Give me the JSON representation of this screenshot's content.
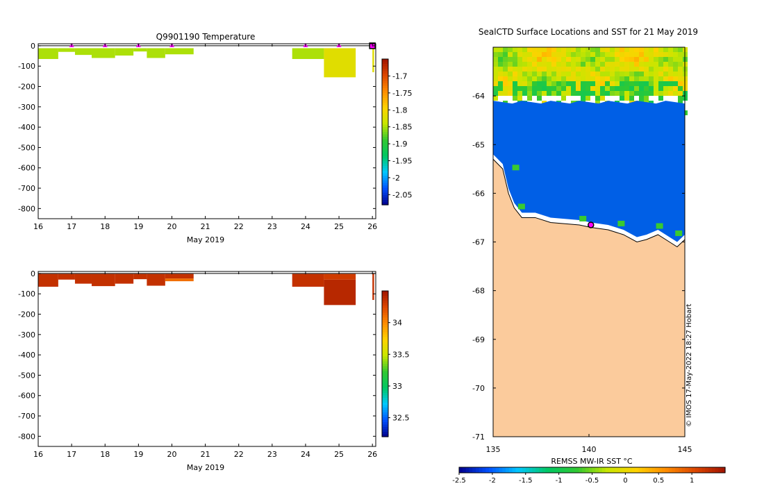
{
  "chart_data": [
    {
      "id": "temperature-profile",
      "type": "heatmap",
      "title": "Q9901190  Temperature",
      "xlabel": "May 2019",
      "ylabel": "",
      "xlim": [
        16,
        26.1
      ],
      "ylim": [
        -850,
        10
      ],
      "x_ticks": [
        "16",
        "17",
        "18",
        "19",
        "20",
        "21",
        "22",
        "23",
        "24",
        "25",
        "26"
      ],
      "y_ticks": [
        "0",
        "-100",
        "-200",
        "-300",
        "-400",
        "-500",
        "-600",
        "-700",
        "-800"
      ],
      "colorbar": {
        "range": [
          -2.08,
          -1.65
        ],
        "ticks": [
          "-1.7",
          "-1.75",
          "-1.8",
          "-1.85",
          "-1.9",
          "-1.95",
          "-2",
          "-2.05"
        ],
        "tick_values": [
          -1.7,
          -1.75,
          -1.8,
          -1.85,
          -1.9,
          -1.95,
          -2,
          -2.05
        ],
        "colors": [
          "#00008b",
          "#0050ff",
          "#00c8ff",
          "#00c864",
          "#32c832",
          "#c8e600",
          "#ffd200",
          "#ff8c00",
          "#dc4600",
          "#a01400"
        ]
      },
      "casts": [
        {
          "x0": 16.0,
          "x1": 16.6,
          "depth_min": -12,
          "depth_max": -65,
          "value": -1.85
        },
        {
          "x0": 16.6,
          "x1": 17.1,
          "depth_min": -12,
          "depth_max": -30,
          "value": -1.85
        },
        {
          "x0": 17.1,
          "x1": 17.6,
          "depth_min": -12,
          "depth_max": -45,
          "value": -1.85
        },
        {
          "x0": 17.6,
          "x1": 18.3,
          "depth_min": -12,
          "depth_max": -60,
          "value": -1.85
        },
        {
          "x0": 18.3,
          "x1": 18.85,
          "depth_min": -12,
          "depth_max": -48,
          "value": -1.85
        },
        {
          "x0": 18.85,
          "x1": 19.25,
          "depth_min": -12,
          "depth_max": -28,
          "value": -1.85
        },
        {
          "x0": 19.25,
          "x1": 19.8,
          "depth_min": -12,
          "depth_max": -60,
          "value": -1.85
        },
        {
          "x0": 19.8,
          "x1": 20.65,
          "depth_min": -12,
          "depth_max": -42,
          "value": -1.85
        },
        {
          "x0": 23.6,
          "x1": 24.55,
          "depth_min": -12,
          "depth_max": -65,
          "value": -1.85
        },
        {
          "x0": 24.55,
          "x1": 25.5,
          "depth_min": -12,
          "depth_max": -155,
          "value": -1.82
        },
        {
          "x0": 26.0,
          "x1": 26.05,
          "depth_min": -12,
          "depth_max": -130,
          "value": -1.82
        }
      ],
      "markers": [
        17,
        18,
        19,
        20,
        24,
        25
      ],
      "current_marker": 26
    },
    {
      "id": "salinity-profile",
      "type": "heatmap",
      "title": "",
      "xlabel": "May 2019",
      "ylabel": "",
      "xlim": [
        16,
        26.1
      ],
      "ylim": [
        -850,
        10
      ],
      "x_ticks": [
        "16",
        "17",
        "18",
        "19",
        "20",
        "21",
        "22",
        "23",
        "24",
        "25",
        "26"
      ],
      "y_ticks": [
        "0",
        "-100",
        "-200",
        "-300",
        "-400",
        "-500",
        "-600",
        "-700",
        "-800"
      ],
      "colorbar": {
        "range": [
          32.2,
          34.5
        ],
        "ticks": [
          "34",
          "33.5",
          "33",
          "32.5"
        ],
        "tick_values": [
          34,
          33.5,
          33,
          32.5
        ],
        "colors": [
          "#00008b",
          "#0050ff",
          "#00c8ff",
          "#00c864",
          "#32c832",
          "#c8e600",
          "#ffd200",
          "#ff8c00",
          "#dc4600",
          "#a01400"
        ]
      },
      "casts": [
        {
          "x0": 16.0,
          "x1": 16.6,
          "depth_min": -2,
          "depth_max": -65,
          "value": 34.35
        },
        {
          "x0": 16.6,
          "x1": 17.1,
          "depth_min": -2,
          "depth_max": -30,
          "value": 34.35
        },
        {
          "x0": 17.1,
          "x1": 17.6,
          "depth_min": -2,
          "depth_max": -50,
          "value": 34.35
        },
        {
          "x0": 17.6,
          "x1": 18.3,
          "depth_min": -2,
          "depth_max": -62,
          "value": 34.35
        },
        {
          "x0": 18.3,
          "x1": 18.85,
          "depth_min": -2,
          "depth_max": -50,
          "value": 34.35
        },
        {
          "x0": 18.85,
          "x1": 19.25,
          "depth_min": -2,
          "depth_max": -28,
          "value": 34.35
        },
        {
          "x0": 19.25,
          "x1": 19.8,
          "depth_min": -2,
          "depth_max": -60,
          "value": 34.35
        },
        {
          "x0": 19.8,
          "x1": 20.65,
          "depth_min": -2,
          "depth_max": -25,
          "value": 34.35
        },
        {
          "x0": 19.8,
          "x1": 20.65,
          "depth_min": -25,
          "depth_max": -38,
          "value": 34.1
        },
        {
          "x0": 23.6,
          "x1": 24.55,
          "depth_min": -2,
          "depth_max": -65,
          "value": 34.35
        },
        {
          "x0": 24.55,
          "x1": 25.5,
          "depth_min": -2,
          "depth_max": -30,
          "value": 34.3
        },
        {
          "x0": 24.55,
          "x1": 25.5,
          "depth_min": -30,
          "depth_max": -155,
          "value": 34.4
        },
        {
          "x0": 26.0,
          "x1": 26.05,
          "depth_min": -2,
          "depth_max": -130,
          "value": 34.35
        }
      ]
    },
    {
      "id": "sst-map",
      "type": "heatmap",
      "title": "SealCTD Surface Locations and SST for 21 May 2019",
      "xlabel": "",
      "ylabel": "",
      "xlim": [
        135,
        145
      ],
      "ylim": [
        -71,
        -63
      ],
      "x_ticks": [
        "135",
        "140",
        "145"
      ],
      "x_tick_values": [
        135,
        140,
        145
      ],
      "y_ticks": [
        "-64",
        "-65",
        "-66",
        "-67",
        "-68",
        "-69",
        "-70",
        "-71"
      ],
      "y_tick_values": [
        -64,
        -65,
        -66,
        -67,
        -68,
        -69,
        -70,
        -71
      ],
      "colorbar": {
        "label": "REMSS MW-IR SST °C",
        "range": [
          -2.5,
          1.5
        ],
        "ticks": [
          "-2.5",
          "-2",
          "-1.5",
          "-1",
          "-0.5",
          "0",
          "0.5",
          "1"
        ],
        "tick_values": [
          -2.5,
          -2,
          -1.5,
          -1,
          -0.5,
          0,
          0.5,
          1
        ],
        "colors": [
          "#00008b",
          "#0050ff",
          "#00c8ff",
          "#00c864",
          "#32c832",
          "#c8e600",
          "#ffd200",
          "#ff8c00",
          "#dc4600",
          "#a01400"
        ]
      },
      "land_color": "#fbcb9c",
      "ice_color": "#005fe6",
      "sst_top_edge": -63.0,
      "ice_top_edge": -64.1,
      "coastline": [
        [
          135.0,
          -65.3
        ],
        [
          135.5,
          -65.5
        ],
        [
          135.8,
          -66.0
        ],
        [
          136.1,
          -66.3
        ],
        [
          136.5,
          -66.5
        ],
        [
          137.2,
          -66.5
        ],
        [
          138.0,
          -66.6
        ],
        [
          139.5,
          -66.65
        ],
        [
          140.1,
          -66.7
        ],
        [
          141.0,
          -66.75
        ],
        [
          141.8,
          -66.85
        ],
        [
          142.5,
          -67.0
        ],
        [
          143.0,
          -66.95
        ],
        [
          143.6,
          -66.85
        ],
        [
          144.2,
          -67.0
        ],
        [
          144.6,
          -67.1
        ],
        [
          145.0,
          -66.95
        ]
      ],
      "seal_location": {
        "lon": 140.1,
        "lat": -66.65
      },
      "watermark": "© IMOS 17-May-2022 18:27 Hobart"
    }
  ]
}
